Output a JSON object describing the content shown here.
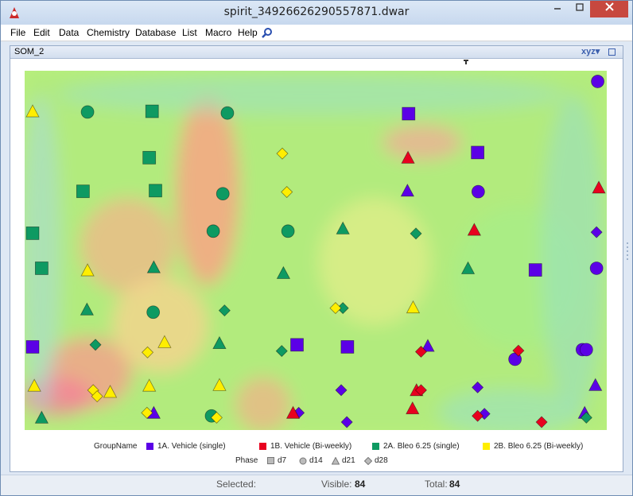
{
  "window": {
    "title": "spirit_34926626290557871.dwar"
  },
  "menubar": {
    "items": [
      "File",
      "Edit",
      "Data",
      "Chemistry",
      "Database",
      "List",
      "Macro",
      "Help"
    ]
  },
  "panel": {
    "name": "SOM_2",
    "view_control": "xyz"
  },
  "legend": {
    "group_label": "GroupName",
    "groups": [
      {
        "label": "1A. Vehicle (single)",
        "color": "#5b00e6"
      },
      {
        "label": "1B. Vehicle (Bi-weekly)",
        "color": "#e8001f"
      },
      {
        "label": "2A. Bleo 6.25 (single)",
        "color": "#0e9a62"
      },
      {
        "label": "2B. Bleo 6.25 (Bi-weekly)",
        "color": "#ffee00"
      }
    ],
    "phase_label": "Phase",
    "phases": [
      {
        "label": "d7",
        "icon": "square"
      },
      {
        "label": "d14",
        "icon": "circle"
      },
      {
        "label": "d21",
        "icon": "triangle"
      },
      {
        "label": "d28",
        "icon": "diamond"
      }
    ]
  },
  "status": {
    "selected_label": "Selected:",
    "selected_value": "",
    "visible_label": "Visible:",
    "visible_value": "84",
    "total_label": "Total:",
    "total_value": "84"
  },
  "chart_data": {
    "type": "scatter",
    "title": "",
    "xlabel": "",
    "ylabel": "",
    "background": "self-organizing-map heat landscape (green/yellow/red/blue)",
    "series": [
      {
        "name": "1A. Vehicle (single)",
        "color": "#5b00e6",
        "points": [
          {
            "x": 0.998,
            "y": 0.992,
            "s": "circle"
          },
          {
            "x": 0.664,
            "y": 0.898,
            "s": "square"
          },
          {
            "x": 0.786,
            "y": 0.785,
            "s": "square"
          },
          {
            "x": 0.662,
            "y": 0.674,
            "s": "triangle"
          },
          {
            "x": 0.787,
            "y": 0.671,
            "s": "circle"
          },
          {
            "x": 0.996,
            "y": 0.553,
            "s": "diamond"
          },
          {
            "x": 0.996,
            "y": 0.448,
            "s": "circle"
          },
          {
            "x": 0.888,
            "y": 0.443,
            "s": "square"
          },
          {
            "x": 0.0,
            "y": 0.219,
            "s": "square"
          },
          {
            "x": 0.467,
            "y": 0.225,
            "s": "square"
          },
          {
            "x": 0.556,
            "y": 0.219,
            "s": "square"
          },
          {
            "x": 0.698,
            "y": 0.222,
            "s": "triangle"
          },
          {
            "x": 0.971,
            "y": 0.211,
            "s": "circle"
          },
          {
            "x": 0.978,
            "y": 0.211,
            "s": "circle"
          },
          {
            "x": 0.852,
            "y": 0.183,
            "s": "circle"
          },
          {
            "x": 0.545,
            "y": 0.093,
            "s": "diamond"
          },
          {
            "x": 0.786,
            "y": 0.101,
            "s": "diamond"
          },
          {
            "x": 0.994,
            "y": 0.108,
            "s": "triangle"
          },
          {
            "x": 0.214,
            "y": 0.027,
            "s": "triangle"
          },
          {
            "x": 0.47,
            "y": 0.027,
            "s": "diamond"
          },
          {
            "x": 0.555,
            "y": 0.0,
            "s": "diamond"
          },
          {
            "x": 0.798,
            "y": 0.024,
            "s": "diamond"
          },
          {
            "x": 0.975,
            "y": 0.027,
            "s": "triangle"
          }
        ]
      },
      {
        "name": "1B. Vehicle (Bi-weekly)",
        "color": "#e8001f",
        "points": [
          {
            "x": 0.663,
            "y": 0.77,
            "s": "triangle"
          },
          {
            "x": 1.0,
            "y": 0.683,
            "s": "triangle"
          },
          {
            "x": 0.78,
            "y": 0.56,
            "s": "triangle"
          },
          {
            "x": 0.686,
            "y": 0.205,
            "s": "diamond"
          },
          {
            "x": 0.858,
            "y": 0.208,
            "s": "diamond"
          },
          {
            "x": 0.678,
            "y": 0.093,
            "s": "triangle"
          },
          {
            "x": 0.686,
            "y": 0.093,
            "s": "diamond"
          },
          {
            "x": 0.671,
            "y": 0.04,
            "s": "triangle"
          },
          {
            "x": 0.46,
            "y": 0.027,
            "s": "triangle"
          },
          {
            "x": 0.786,
            "y": 0.018,
            "s": "diamond"
          },
          {
            "x": 0.899,
            "y": 0.0,
            "s": "diamond"
          }
        ]
      },
      {
        "name": "2A. Bleo 6.25 (single)",
        "color": "#0e9a62",
        "points": [
          {
            "x": 0.097,
            "y": 0.903,
            "s": "circle"
          },
          {
            "x": 0.211,
            "y": 0.905,
            "s": "square"
          },
          {
            "x": 0.344,
            "y": 0.9,
            "s": "circle"
          },
          {
            "x": 0.206,
            "y": 0.77,
            "s": "square"
          },
          {
            "x": 0.089,
            "y": 0.672,
            "s": "square"
          },
          {
            "x": 0.217,
            "y": 0.674,
            "s": "square"
          },
          {
            "x": 0.336,
            "y": 0.665,
            "s": "circle"
          },
          {
            "x": 0.0,
            "y": 0.55,
            "s": "square"
          },
          {
            "x": 0.319,
            "y": 0.556,
            "s": "circle"
          },
          {
            "x": 0.451,
            "y": 0.556,
            "s": "circle"
          },
          {
            "x": 0.548,
            "y": 0.564,
            "s": "triangle"
          },
          {
            "x": 0.677,
            "y": 0.549,
            "s": "diamond"
          },
          {
            "x": 0.016,
            "y": 0.448,
            "s": "square"
          },
          {
            "x": 0.214,
            "y": 0.451,
            "s": "triangle"
          },
          {
            "x": 0.443,
            "y": 0.434,
            "s": "triangle"
          },
          {
            "x": 0.769,
            "y": 0.448,
            "s": "triangle"
          },
          {
            "x": 0.096,
            "y": 0.328,
            "s": "triangle"
          },
          {
            "x": 0.213,
            "y": 0.32,
            "s": "circle"
          },
          {
            "x": 0.339,
            "y": 0.325,
            "s": "diamond"
          },
          {
            "x": 0.548,
            "y": 0.332,
            "s": "diamond"
          },
          {
            "x": 0.111,
            "y": 0.225,
            "s": "diamond"
          },
          {
            "x": 0.33,
            "y": 0.23,
            "s": "triangle"
          },
          {
            "x": 0.44,
            "y": 0.207,
            "s": "diamond"
          },
          {
            "x": 0.016,
            "y": 0.013,
            "s": "triangle"
          },
          {
            "x": 0.316,
            "y": 0.018,
            "s": "circle"
          },
          {
            "x": 0.978,
            "y": 0.013,
            "s": "diamond"
          }
        ]
      },
      {
        "name": "2B. Bleo 6.25 (Bi-weekly)",
        "color": "#ffee00",
        "points": [
          {
            "x": 0.0,
            "y": 0.905,
            "s": "triangle"
          },
          {
            "x": 0.441,
            "y": 0.782,
            "s": "diamond"
          },
          {
            "x": 0.449,
            "y": 0.67,
            "s": "diamond"
          },
          {
            "x": 0.097,
            "y": 0.442,
            "s": "triangle"
          },
          {
            "x": 0.535,
            "y": 0.332,
            "s": "diamond"
          },
          {
            "x": 0.672,
            "y": 0.334,
            "s": "triangle"
          },
          {
            "x": 0.233,
            "y": 0.233,
            "s": "triangle"
          },
          {
            "x": 0.203,
            "y": 0.203,
            "s": "diamond"
          },
          {
            "x": 0.003,
            "y": 0.106,
            "s": "triangle"
          },
          {
            "x": 0.107,
            "y": 0.093,
            "s": "diamond"
          },
          {
            "x": 0.114,
            "y": 0.075,
            "s": "diamond"
          },
          {
            "x": 0.137,
            "y": 0.088,
            "s": "triangle"
          },
          {
            "x": 0.206,
            "y": 0.106,
            "s": "triangle"
          },
          {
            "x": 0.33,
            "y": 0.108,
            "s": "triangle"
          },
          {
            "x": 0.202,
            "y": 0.027,
            "s": "diamond"
          },
          {
            "x": 0.325,
            "y": 0.013,
            "s": "diamond"
          }
        ]
      }
    ]
  }
}
